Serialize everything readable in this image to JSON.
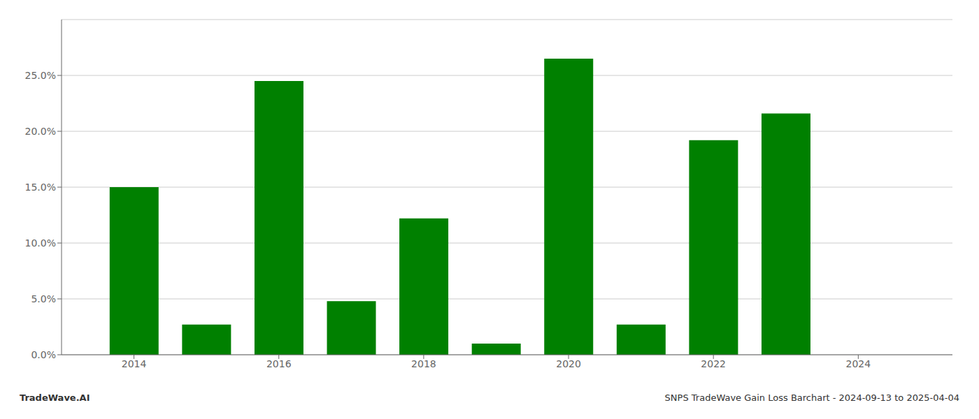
{
  "chart_data": {
    "type": "bar",
    "x": [
      2014,
      2015,
      2016,
      2017,
      2018,
      2019,
      2020,
      2021,
      2022,
      2023,
      2024
    ],
    "values": [
      0.15,
      0.027,
      0.245,
      0.048,
      0.122,
      0.01,
      0.265,
      0.027,
      0.192,
      0.216,
      0.0
    ],
    "color": "#008000",
    "xlim": [
      2013.0,
      2025.3
    ],
    "xticks": [
      2014,
      2016,
      2018,
      2020,
      2022,
      2024
    ],
    "ylim": [
      0,
      0.3
    ],
    "yticks": [
      {
        "value": 0.0,
        "label": "0.0%"
      },
      {
        "value": 0.05,
        "label": "5.0%"
      },
      {
        "value": 0.1,
        "label": "10.0%"
      },
      {
        "value": 0.15,
        "label": "15.0%"
      },
      {
        "value": 0.2,
        "label": "20.0%"
      },
      {
        "value": 0.25,
        "label": "25.0%"
      }
    ],
    "grid": true,
    "annotations": [
      "TradeWave.AI",
      "SNPS TradeWave Gain Loss Barchart - 2024-09-13 to 2025-04-04"
    ]
  }
}
